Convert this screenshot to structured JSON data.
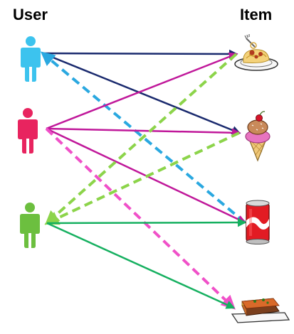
{
  "headers": {
    "user": "User",
    "item": "Item"
  },
  "users": [
    {
      "id": "user-blue",
      "color": "#3cc3ee"
    },
    {
      "id": "user-red",
      "color": "#e8245f"
    },
    {
      "id": "user-green",
      "color": "#6cbf3f"
    }
  ],
  "items": [
    {
      "id": "item-spaghetti",
      "icon": "spaghetti-icon"
    },
    {
      "id": "item-ice-cream",
      "icon": "ice-cream-icon"
    },
    {
      "id": "item-soda-can",
      "icon": "soda-can-icon"
    },
    {
      "id": "item-lasagna",
      "icon": "lasagna-icon"
    }
  ],
  "edges": [
    {
      "from": "user-blue",
      "to": "item-spaghetti",
      "direction": "user-to-item",
      "style": "solid",
      "color": "#1a2a6e"
    },
    {
      "from": "user-blue",
      "to": "item-ice-cream",
      "direction": "user-to-item",
      "style": "solid",
      "color": "#1a2a6e"
    },
    {
      "from": "item-soda-can",
      "to": "user-blue",
      "direction": "item-to-user",
      "style": "dashed",
      "color": "#2aa8e0"
    },
    {
      "from": "user-red",
      "to": "item-spaghetti",
      "direction": "user-to-item",
      "style": "solid",
      "color": "#c0189a"
    },
    {
      "from": "user-red",
      "to": "item-ice-cream",
      "direction": "user-to-item",
      "style": "solid",
      "color": "#c0189a"
    },
    {
      "from": "user-red",
      "to": "item-soda-can",
      "direction": "user-to-item",
      "style": "solid",
      "color": "#c0189a"
    },
    {
      "from": "user-red",
      "to": "item-lasagna",
      "direction": "user-to-item",
      "style": "dashed",
      "color": "#f050c8"
    },
    {
      "from": "item-spaghetti",
      "to": "user-green",
      "direction": "item-to-user",
      "style": "dashed",
      "color": "#8cd44a"
    },
    {
      "from": "item-ice-cream",
      "to": "user-green",
      "direction": "item-to-user",
      "style": "dashed",
      "color": "#8cd44a"
    },
    {
      "from": "user-green",
      "to": "item-soda-can",
      "direction": "user-to-item",
      "style": "solid",
      "color": "#16b060"
    },
    {
      "from": "user-green",
      "to": "item-lasagna",
      "direction": "user-to-item",
      "style": "solid",
      "color": "#16b060"
    }
  ]
}
